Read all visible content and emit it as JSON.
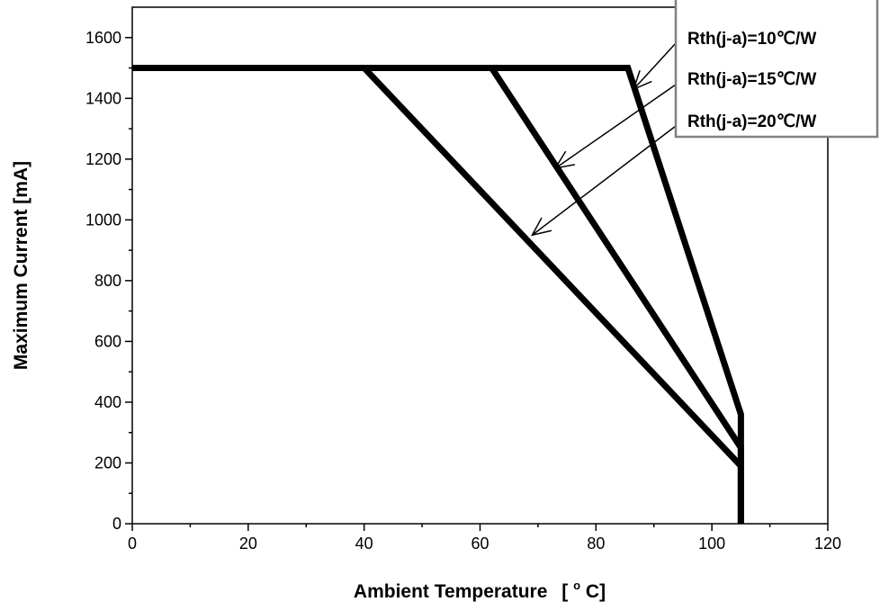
{
  "colors": {
    "line": "#000000",
    "background": "#ffffff",
    "legend_border": "#808080"
  },
  "chart_data": {
    "type": "line",
    "xlabel": "Ambient Temperature",
    "xlabel_unit_prefix": "[",
    "xlabel_unit_sup": "o",
    "xlabel_unit_suffix": "C]",
    "ylabel": "Maximum Current [mA]",
    "xlim": [
      0,
      120
    ],
    "ylim": [
      0,
      1700
    ],
    "xticks": [
      0,
      20,
      40,
      60,
      80,
      100,
      120
    ],
    "xtick_labels": [
      "0",
      "20",
      "40",
      "60",
      "80",
      "100",
      "120"
    ],
    "yticks": [
      0,
      200,
      400,
      600,
      800,
      1000,
      1200,
      1400,
      1600
    ],
    "ytick_labels": [
      "0",
      "200",
      "400",
      "600",
      "800",
      "1000",
      "1200",
      "1400",
      "1600"
    ],
    "grid": false,
    "legend_position": "top-right",
    "series": [
      {
        "name": "Rth(j-a)=10℃/W",
        "x": [
          0,
          85.5,
          105,
          105
        ],
        "y": [
          1500,
          1500,
          360,
          0
        ]
      },
      {
        "name": "Rth(j-a)=15℃/W",
        "x": [
          0,
          62,
          105,
          105
        ],
        "y": [
          1500,
          1500,
          250,
          0
        ]
      },
      {
        "name": "Rth(j-a)=20℃/W",
        "x": [
          0,
          40,
          105,
          105
        ],
        "y": [
          1500,
          1500,
          190,
          0
        ]
      }
    ],
    "annotations": [
      {
        "series": 0,
        "label_y": 1610,
        "target_x": 86.5,
        "target_y": 1430
      },
      {
        "series": 1,
        "label_y": 1510,
        "target_x": 73,
        "target_y": 1170
      },
      {
        "series": 2,
        "label_y": 1410,
        "target_x": 69,
        "target_y": 950
      }
    ]
  }
}
